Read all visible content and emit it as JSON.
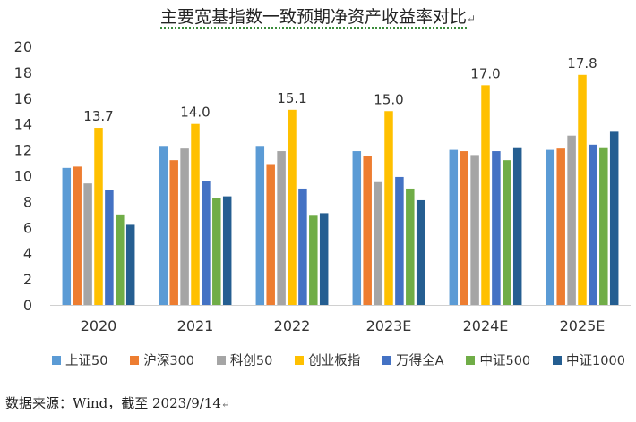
{
  "chart_data": {
    "type": "bar",
    "title": "主要宽基指数一致预期净资产收益率对比",
    "categories": [
      "2020",
      "2021",
      "2022",
      "2023E",
      "2024E",
      "2025E"
    ],
    "ylim": [
      0,
      20
    ],
    "yticks": [
      0,
      2,
      4,
      6,
      8,
      10,
      12,
      14,
      16,
      18,
      20
    ],
    "grid": false,
    "legend": "bottom",
    "series": [
      {
        "name": "上证50",
        "color": "#5B9BD5",
        "values": [
          10.6,
          12.3,
          12.3,
          11.9,
          12.0,
          12.0
        ]
      },
      {
        "name": "沪深300",
        "color": "#ED7D31",
        "values": [
          10.7,
          11.2,
          10.9,
          11.5,
          11.9,
          12.1
        ]
      },
      {
        "name": "科创50",
        "color": "#A5A5A5",
        "values": [
          9.4,
          12.1,
          11.9,
          9.5,
          11.6,
          13.1
        ]
      },
      {
        "name": "创业板指",
        "color": "#FFC000",
        "values": [
          13.7,
          14.0,
          15.1,
          15.0,
          17.0,
          17.8
        ]
      },
      {
        "name": "万得全A",
        "color": "#4472C4",
        "values": [
          8.9,
          9.6,
          9.0,
          9.9,
          11.9,
          12.4
        ]
      },
      {
        "name": "中证500",
        "color": "#70AD47",
        "values": [
          7.0,
          8.3,
          6.9,
          9.0,
          11.2,
          12.2
        ]
      },
      {
        "name": "中证1000",
        "color": "#255E91",
        "values": [
          6.2,
          8.4,
          7.1,
          8.1,
          12.2,
          13.4
        ]
      }
    ],
    "data_labels": {
      "series": "创业板指",
      "values": [
        "13.7",
        "14.0",
        "15.1",
        "15.0",
        "17.0",
        "17.8"
      ]
    }
  },
  "source": "数据来源：Wind，截至 2023/9/14"
}
